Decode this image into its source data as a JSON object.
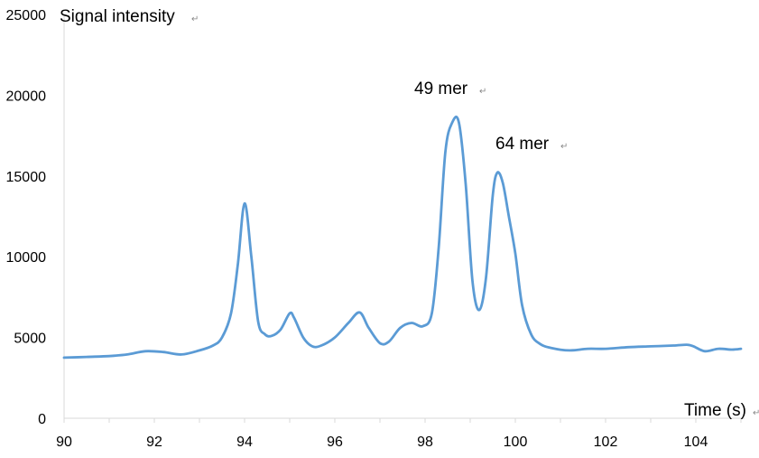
{
  "chart_data": {
    "type": "line",
    "ylabel": "Signal intensity",
    "xlabel": "Time (s)",
    "ylim": [
      0,
      25000
    ],
    "xlim": [
      90,
      105
    ],
    "yticks": [
      0,
      5000,
      10000,
      15000,
      20000,
      25000
    ],
    "xticks": [
      90,
      92,
      94,
      96,
      98,
      100,
      102,
      104
    ],
    "grid": false,
    "line_color": "#5B9BD5",
    "annotations": [
      {
        "text": "49 mer",
        "x": 98.8,
        "y": 20600
      },
      {
        "text": "64 mer",
        "x": 99.7,
        "y": 17100
      }
    ],
    "series": [
      {
        "x": [
          90,
          90.5,
          91,
          91.4,
          91.8,
          92.2,
          92.6,
          93.0,
          93.3,
          93.5,
          93.7,
          93.85,
          94.0,
          94.15,
          94.3,
          94.45,
          94.6,
          94.8,
          95.0,
          95.1,
          95.3,
          95.5,
          95.7,
          96.0,
          96.3,
          96.55,
          96.75,
          97.0,
          97.2,
          97.45,
          97.7,
          97.95,
          98.15,
          98.3,
          98.45,
          98.6,
          98.75,
          98.9,
          99.05,
          99.2,
          99.35,
          99.5,
          99.6,
          99.72,
          99.85,
          100.0,
          100.15,
          100.35,
          100.55,
          100.8,
          101.2,
          101.6,
          102.0,
          102.5,
          103.0,
          103.5,
          103.8,
          103.95,
          104.2,
          104.5,
          104.8,
          105.0
        ],
        "y": [
          3750,
          3800,
          3850,
          3950,
          4150,
          4100,
          3950,
          4200,
          4500,
          5000,
          6500,
          9500,
          13300,
          10000,
          6000,
          5200,
          5100,
          5500,
          6500,
          6200,
          5000,
          4450,
          4500,
          5000,
          5900,
          6550,
          5600,
          4650,
          4750,
          5600,
          5900,
          5700,
          6500,
          10500,
          16500,
          18300,
          18300,
          14500,
          8500,
          6700,
          8700,
          13800,
          15200,
          14600,
          12600,
          10200,
          7000,
          5200,
          4600,
          4350,
          4200,
          4300,
          4300,
          4400,
          4450,
          4500,
          4550,
          4450,
          4150,
          4300,
          4250,
          4300
        ]
      }
    ]
  }
}
